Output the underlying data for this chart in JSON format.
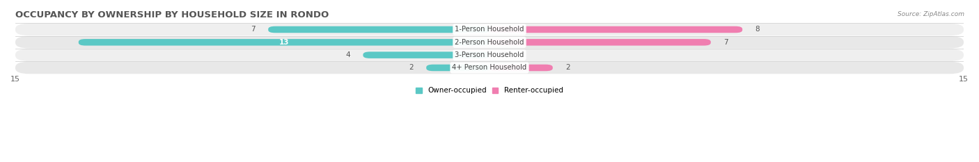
{
  "title": "OCCUPANCY BY OWNERSHIP BY HOUSEHOLD SIZE IN RONDO",
  "source": "Source: ZipAtlas.com",
  "categories": [
    "1-Person Household",
    "2-Person Household",
    "3-Person Household",
    "4+ Person Household"
  ],
  "owner_values": [
    7,
    13,
    4,
    2
  ],
  "renter_values": [
    8,
    7,
    0,
    2
  ],
  "owner_color": "#5BC8C5",
  "renter_color": "#F07EB0",
  "row_colors": [
    "#EFEFEF",
    "#E8E8E8",
    "#EFEFEF",
    "#E8E8E8"
  ],
  "xlim": 15,
  "legend_owner": "Owner-occupied",
  "legend_renter": "Renter-occupied",
  "title_fontsize": 9.5,
  "label_fontsize": 7.5,
  "tick_fontsize": 8,
  "bar_height": 0.52,
  "figsize": [
    14.06,
    2.33
  ],
  "dpi": 100
}
